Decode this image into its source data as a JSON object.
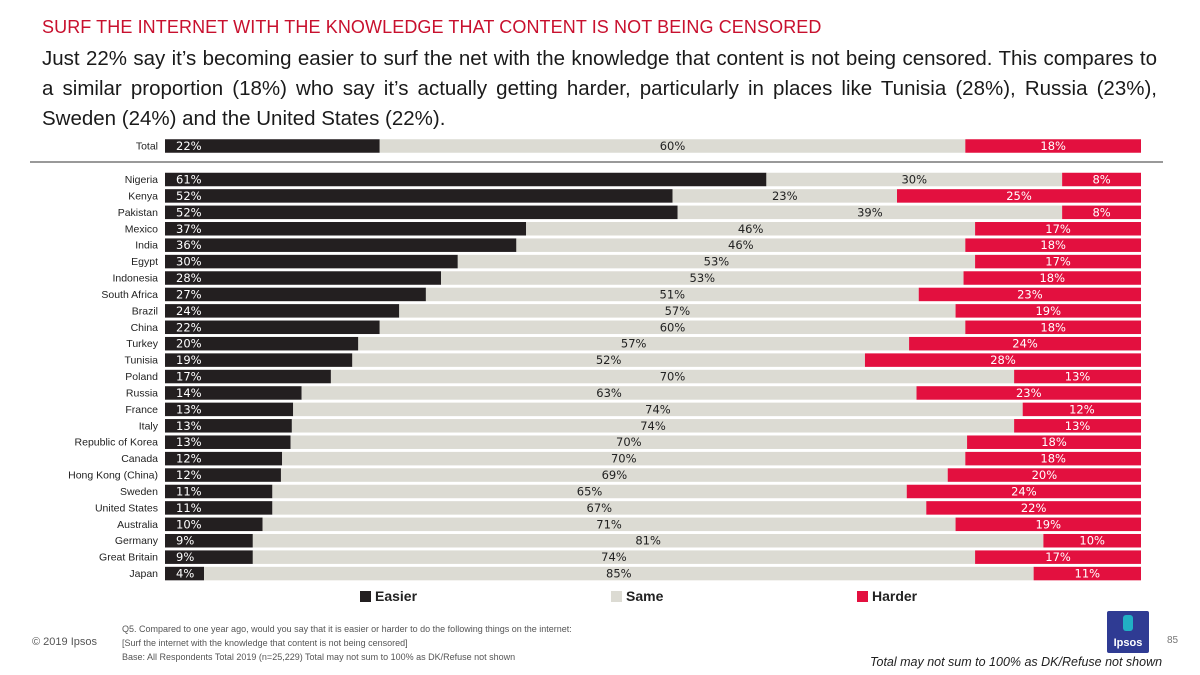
{
  "header": {
    "title": "SURF THE INTERNET WITH THE KNOWLEDGE THAT CONTENT IS NOT BEING CENSORED",
    "subtitle": "Just 22% say it’s becoming easier to surf the net with the knowledge that content is not being censored. This compares to a similar proportion (18%) who say it’s actually getting harder, particularly in places like Tunisia (28%), Russia (23%), Sweden (24%) and the United States (22%)."
  },
  "colors": {
    "easier": "#231f20",
    "same": "#dcdbd3",
    "harder": "#e3103f",
    "text": "#222222"
  },
  "chart_data": {
    "type": "bar",
    "orientation": "horizontal",
    "stacked": true,
    "categories": [
      "Total",
      "Nigeria",
      "Kenya",
      "Pakistan",
      "Mexico",
      "India",
      "Egypt",
      "Indonesia",
      "South Africa",
      "Brazil",
      "China",
      "Turkey",
      "Tunisia",
      "Poland",
      "Russia",
      "France",
      "Italy",
      "Republic of Korea",
      "Canada",
      "Hong Kong (China)",
      "Sweden",
      "United States",
      "Australia",
      "Germany",
      "Great Britain",
      "Japan"
    ],
    "series": [
      {
        "name": "Easier",
        "values": [
          22,
          61,
          52,
          52,
          37,
          36,
          30,
          28,
          27,
          24,
          22,
          20,
          19,
          17,
          14,
          13,
          13,
          13,
          12,
          12,
          11,
          11,
          10,
          9,
          9,
          4
        ]
      },
      {
        "name": "Same",
        "values": [
          60,
          30,
          23,
          39,
          46,
          46,
          53,
          53,
          51,
          57,
          60,
          57,
          52,
          70,
          63,
          74,
          74,
          70,
          70,
          69,
          65,
          67,
          71,
          81,
          74,
          85
        ]
      },
      {
        "name": "Harder",
        "values": [
          18,
          8,
          25,
          8,
          17,
          18,
          17,
          18,
          23,
          19,
          18,
          24,
          28,
          13,
          23,
          12,
          13,
          18,
          18,
          20,
          24,
          22,
          19,
          10,
          17,
          11
        ]
      }
    ],
    "label_suffix": "%",
    "legend": [
      "Easier",
      "Same",
      "Harder"
    ],
    "legend_position": "bottom"
  },
  "footer": {
    "copyright": "© 2019 Ipsos",
    "question_lines": [
      "Q5. Compared to one year ago, would you say that it is easier or harder to do the following things on the internet:",
      "[Surf the internet with the knowledge that content is not being censored]",
      "Base: All Respondents Total 2019 (n=25,229) Total may not sum to 100% as DK/Refuse not shown"
    ],
    "page_number": "85",
    "note": "Total may not sum to 100% as DK/Refuse not shown",
    "logo": "Ipsos"
  }
}
